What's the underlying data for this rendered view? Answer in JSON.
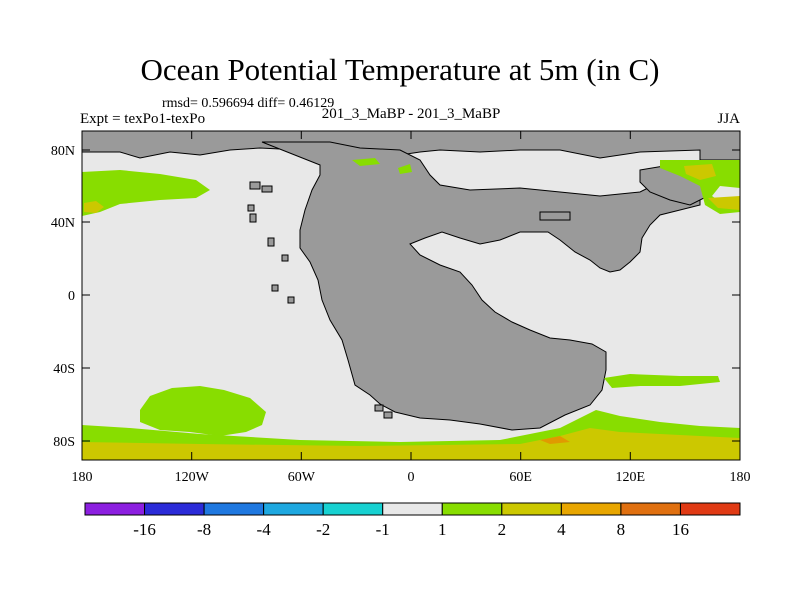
{
  "title": "Ocean Potential Temperature at 5m (in C)",
  "stats": "rmsd= 0.596694 diff= 0.46129",
  "left_label": "Expt = texPo1-texPo",
  "center_label": "201_3_MaBP - 201_3_MaBP",
  "right_label": "JJA",
  "colors": {
    "land": "#9a9a9a",
    "ocean_background": "#e8e8e8",
    "green_anomaly": "#88dd00",
    "yellow_anomaly": "#ccc800",
    "orange_anomaly": "#e09a00"
  },
  "map": {
    "lat_ticks": [
      "80N",
      "40N",
      "0",
      "40S",
      "80S"
    ],
    "lon_ticks": [
      "180",
      "120W",
      "60W",
      "0",
      "60E",
      "120E",
      "180"
    ]
  },
  "colorbar": {
    "colors": [
      "#8c1fe0",
      "#2b2bd8",
      "#1f78e0",
      "#1ea8e0",
      "#17d1d1",
      "#e8e8e8",
      "#88dd00",
      "#ccc800",
      "#e8a600",
      "#e07010",
      "#e03a14"
    ],
    "labels": [
      "-16",
      "-8",
      "-4",
      "-2",
      "-1",
      "1",
      "2",
      "4",
      "8",
      "16"
    ]
  }
}
